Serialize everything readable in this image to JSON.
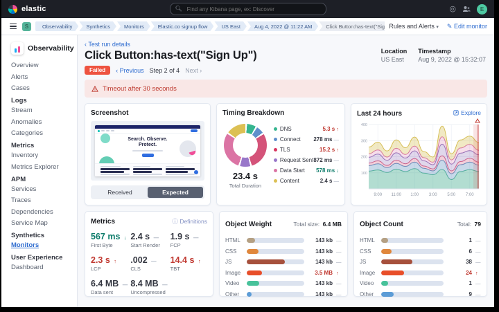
{
  "topbar": {
    "brand": "elastic",
    "search_placeholder": "Find any Kibana page, ex: Discover",
    "avatar_initial": "E"
  },
  "navbar": {
    "space_initial": "S",
    "breadcrumbs": [
      "Observability",
      "Synthetics",
      "Monitors",
      "Elastic.co signup flow",
      "US East",
      "Aug 4, 2022 @ 11:22 AM",
      "Click Button:has-text(\"Sign up\")"
    ],
    "rules_and_alerts": "Rules and Alerts",
    "edit_monitor": "Edit monitor"
  },
  "sidebar": {
    "app_title": "Observability",
    "sections": [
      {
        "header": "",
        "items": [
          {
            "label": "Overview"
          },
          {
            "label": "Alerts"
          },
          {
            "label": "Cases"
          }
        ]
      },
      {
        "header": "Logs",
        "items": [
          {
            "label": "Stream"
          },
          {
            "label": "Anomalies"
          },
          {
            "label": "Categories"
          }
        ]
      },
      {
        "header": "Metrics",
        "items": [
          {
            "label": "Inventory"
          },
          {
            "label": "Metrics Explorer"
          }
        ]
      },
      {
        "header": "APM",
        "items": [
          {
            "label": "Services"
          },
          {
            "label": "Traces"
          },
          {
            "label": "Dependencies"
          },
          {
            "label": "Service Map"
          }
        ]
      },
      {
        "header": "Synthetics",
        "items": [
          {
            "label": "Monitors",
            "active": true
          }
        ]
      },
      {
        "header": "User Experience",
        "items": [
          {
            "label": "Dashboard"
          }
        ]
      }
    ]
  },
  "page": {
    "back_link": "Test run details",
    "title": "Click Button:has-text(\"Sign Up\")",
    "status_badge": "Failed",
    "prev_label": "Previous",
    "step_label": "Step 2 of 4",
    "next_label": "Next",
    "location_label": "Location",
    "location_value": "US East",
    "timestamp_label": "Timestamp",
    "timestamp_value": "Aug 9, 2022 @ 15:32:07",
    "alert_message": "Timeout after 30 seconds"
  },
  "screenshot_panel": {
    "title": "Screenshot",
    "received_label": "Received",
    "expected_label": "Expected",
    "selected": "Expected",
    "preview": {
      "heading_line1": "Search. Observe.",
      "heading_line2": "Protect."
    }
  },
  "timing_panel": {
    "title": "Timing Breakdown",
    "total_value": "23.4 s",
    "total_label": "Total Duration",
    "donut_segments": [
      {
        "name": "DNS",
        "color": "#36B58F",
        "pct": 8
      },
      {
        "name": "Connect",
        "color": "#5F8FCB",
        "pct": 7
      },
      {
        "name": "TLS",
        "color": "#D45379",
        "pct": 30
      },
      {
        "name": "Request Sent",
        "color": "#9877C9",
        "pct": 9
      },
      {
        "name": "Data Start",
        "color": "#DB74A4",
        "pct": 30
      },
      {
        "name": "Content",
        "color": "#DCC054",
        "pct": 16
      }
    ],
    "legend": [
      {
        "label": "DNS",
        "color": "#36B58F",
        "value": "5.3 s",
        "trend": "up",
        "status": "bad"
      },
      {
        "label": "Connect",
        "color": "#5F8FCB",
        "value": "278 ms",
        "trend": "flat",
        "status": "neutral"
      },
      {
        "label": "TLS",
        "color": "#D8345F",
        "value": "15.2 s",
        "trend": "up",
        "status": "bad"
      },
      {
        "label": "Request Sent",
        "color": "#9877C9",
        "value": "872 ms",
        "trend": "flat",
        "status": "neutral"
      },
      {
        "label": "Data Start",
        "color": "#DB74A4",
        "value": "578 ms",
        "trend": "down",
        "status": "good"
      },
      {
        "label": "Content",
        "color": "#DCC054",
        "value": "2.4 s",
        "trend": "flat",
        "status": "neutral"
      }
    ]
  },
  "last24_panel": {
    "title": "Last 24 hours",
    "explore_label": "Explore",
    "chart_data": {
      "type": "area",
      "stacked": true,
      "x_labels": [
        "9:00",
        "11:00",
        "1:00",
        "3:00",
        "5:00",
        "7:00"
      ],
      "x_label_indices": [
        1,
        3,
        5,
        7,
        9,
        11
      ],
      "y_ticks": [
        100,
        200,
        300,
        400
      ],
      "ylim": [
        0,
        400
      ],
      "alert_band_start": 0.95,
      "series": [
        {
          "name": "DNS",
          "stroke": "#54B399",
          "fill": "rgba(84,179,153,0.45)",
          "values": [
            110,
            118,
            102,
            122,
            108,
            126,
            98,
            88,
            120,
            58,
            108,
            120,
            108
          ]
        },
        {
          "name": "Connect",
          "stroke": "#6092C0",
          "fill": "rgba(96,146,192,0.35)",
          "values": [
            34,
            38,
            30,
            36,
            32,
            40,
            30,
            24,
            58,
            36,
            42,
            46,
            40
          ]
        },
        {
          "name": "TLS",
          "stroke": "#D36086",
          "fill": "rgba(211,96,134,0.30)",
          "values": [
            16,
            18,
            14,
            20,
            16,
            22,
            14,
            12,
            28,
            18,
            20,
            24,
            18
          ]
        },
        {
          "name": "Request Sent",
          "stroke": "#9170B8",
          "fill": "rgba(145,112,184,0.28)",
          "values": [
            36,
            42,
            32,
            46,
            36,
            48,
            32,
            26,
            72,
            42,
            52,
            48,
            46
          ]
        },
        {
          "name": "Data Start",
          "stroke": "#D76BA5",
          "fill": "rgba(215,107,165,0.22)",
          "values": [
            22,
            26,
            20,
            28,
            22,
            30,
            20,
            16,
            46,
            26,
            32,
            38,
            28
          ]
        },
        {
          "name": "Content",
          "stroke": "#D6BF57",
          "fill": "rgba(214,191,87,0.35)",
          "values": [
            42,
            48,
            38,
            52,
            42,
            56,
            38,
            32,
            66,
            38,
            50,
            52,
            48
          ]
        }
      ]
    }
  },
  "metrics_panel": {
    "title": "Metrics",
    "definitions_label": "Definitions",
    "items": [
      {
        "value": "567 ms",
        "label": "First Byte",
        "trend": "down",
        "status": "good"
      },
      {
        "value": "2.4 s",
        "label": "Start Render",
        "trend": "flat",
        "status": "neutral"
      },
      {
        "value": "1.9 s",
        "label": "FCP",
        "trend": "flat",
        "status": "neutral"
      },
      {
        "value": "2.3 s",
        "label": "LCP",
        "trend": "up",
        "status": "bad"
      },
      {
        "value": ".002",
        "label": "CLS",
        "trend": "flat",
        "status": "neutral"
      },
      {
        "value": "14.4 s",
        "label": "TBT",
        "trend": "up",
        "status": "bad"
      },
      {
        "value": "6.4 MB",
        "label": "Data sent",
        "trend": "flat",
        "status": "neutral"
      },
      {
        "value": "8.4 MB",
        "label": "Uncompressed",
        "trend": "flat",
        "status": "neutral"
      }
    ]
  },
  "object_weight_panel": {
    "title": "Object Weight",
    "total_label": "Total size:",
    "total_value": "6.4 MB",
    "rows": [
      {
        "label": "HTML",
        "color": "#B5A083",
        "pct": 14,
        "value": "143 kb",
        "trend": "flat",
        "status": "neutral"
      },
      {
        "label": "CSS",
        "color": "#E0873C",
        "pct": 21,
        "value": "143 kb",
        "trend": "flat",
        "status": "neutral"
      },
      {
        "label": "JS",
        "color": "#A6503C",
        "pct": 66,
        "value": "143 kb",
        "trend": "flat",
        "status": "neutral"
      },
      {
        "label": "Image",
        "color": "#E84E29",
        "pct": 26,
        "value": "3.5 MB",
        "trend": "up",
        "status": "bad"
      },
      {
        "label": "Video",
        "color": "#47C29A",
        "pct": 22,
        "value": "143 kb",
        "trend": "flat",
        "status": "neutral"
      },
      {
        "label": "Other",
        "color": "#5C9CD6",
        "pct": 9,
        "value": "143 kb",
        "trend": "flat",
        "status": "neutral"
      }
    ]
  },
  "object_count_panel": {
    "title": "Object Count",
    "total_label": "Total:",
    "total_value": "79",
    "rows": [
      {
        "label": "HTML",
        "color": "#B5A083",
        "pct": 11,
        "value": "1",
        "trend": "flat",
        "status": "neutral"
      },
      {
        "label": "CSS",
        "color": "#E0873C",
        "pct": 17,
        "value": "6",
        "trend": "flat",
        "status": "neutral"
      },
      {
        "label": "JS",
        "color": "#A6503C",
        "pct": 50,
        "value": "38",
        "trend": "flat",
        "status": "neutral"
      },
      {
        "label": "Image",
        "color": "#E84E29",
        "pct": 37,
        "value": "24",
        "trend": "up",
        "status": "bad"
      },
      {
        "label": "Video",
        "color": "#47C29A",
        "pct": 11,
        "value": "1",
        "trend": "flat",
        "status": "neutral"
      },
      {
        "label": "Other",
        "color": "#5C9CD6",
        "pct": 20,
        "value": "9",
        "trend": "flat",
        "status": "neutral"
      }
    ]
  }
}
